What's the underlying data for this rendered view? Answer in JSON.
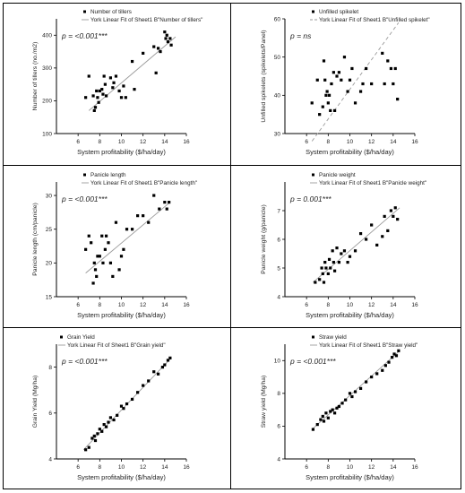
{
  "chart_data": [
    {
      "type": "scatter",
      "ylabel": "Number of tillers (no./m2)",
      "xlabel": "System profitability ($/ha/day)",
      "annotation": "p = <0.001***",
      "legend": [
        "Number of tillers",
        "York Linear Fit of Sheet1 B\"Number of tillers\""
      ],
      "legend_placement": "top-center",
      "xlim": [
        4,
        16
      ],
      "ylim": [
        100,
        450
      ],
      "xticks": [
        6,
        8,
        10,
        12,
        14,
        16
      ],
      "yticks": [
        100,
        200,
        300,
        400
      ],
      "series": [
        {
          "x": [
            6.7,
            7.0,
            7.4,
            7.5,
            7.6,
            7.7,
            7.8,
            7.9,
            8.0,
            8.2,
            8.3,
            8.4,
            8.5,
            8.6,
            9.0,
            9.2,
            9.3,
            9.5,
            9.8,
            10.0,
            10.2,
            10.4,
            11.0,
            11.2,
            12.0,
            13.0,
            13.2,
            13.4,
            13.6,
            14.0,
            14.1,
            14.2,
            14.3,
            14.5,
            14.6
          ],
          "y": [
            210,
            275,
            215,
            170,
            180,
            230,
            210,
            195,
            230,
            235,
            220,
            275,
            250,
            215,
            270,
            240,
            255,
            275,
            230,
            210,
            245,
            210,
            320,
            235,
            345,
            365,
            285,
            360,
            350,
            410,
            390,
            400,
            380,
            390,
            370
          ]
        }
      ],
      "fit": {
        "x": [
          7.0,
          15.0
        ],
        "y": [
          170,
          395
        ],
        "style": "solid"
      }
    },
    {
      "type": "scatter",
      "ylabel": "Unfilled spikelets (spikelets/Panel)",
      "xlabel": "System profitability ($/ha/day)",
      "annotation": "p = ns",
      "legend": [
        "Unfilled spikelet",
        "York Linear Fit of Sheet1 B\"Unfilled spikelet\""
      ],
      "legend_placement": "top-center",
      "xlim": [
        4,
        16
      ],
      "ylim": [
        30,
        60
      ],
      "xticks": [
        6,
        8,
        10,
        12,
        14,
        16
      ],
      "yticks": [
        30,
        40,
        50,
        60
      ],
      "series": [
        {
          "x": [
            6.5,
            7.0,
            7.2,
            7.5,
            7.6,
            7.7,
            7.8,
            7.9,
            8.0,
            8.1,
            8.2,
            8.3,
            8.5,
            8.6,
            8.8,
            9.0,
            9.2,
            9.5,
            9.8,
            10.0,
            10.2,
            10.5,
            11.0,
            11.2,
            11.5,
            12.0,
            13.0,
            13.2,
            13.5,
            13.8,
            14.0,
            14.2,
            14.4
          ],
          "y": [
            38,
            44,
            35,
            37,
            49,
            44,
            40,
            41,
            38,
            40,
            36,
            43,
            46,
            36,
            45,
            46,
            44,
            50,
            41,
            44,
            47,
            38,
            41,
            43,
            47,
            43,
            51,
            43,
            49,
            47,
            43,
            47,
            39
          ]
        }
      ],
      "fit": {
        "x": [
          6.5,
          14.5
        ],
        "y": [
          28,
          59
        ],
        "style": "dashed"
      }
    },
    {
      "type": "scatter",
      "ylabel": "Panicle length (cm/panicle)",
      "xlabel": "System profitability ($/ha/day)",
      "annotation": "p = <0.001***",
      "legend": [
        "Panicle length",
        "York Linear Fit of Sheet1 B\"Panicle length\""
      ],
      "legend_placement": "top-center",
      "xlim": [
        4,
        16
      ],
      "ylim": [
        15,
        32
      ],
      "xticks": [
        6,
        8,
        10,
        12,
        14,
        16
      ],
      "yticks": [
        15,
        20,
        25,
        30
      ],
      "series": [
        {
          "x": [
            6.7,
            7.0,
            7.2,
            7.4,
            7.5,
            7.6,
            7.7,
            7.8,
            8.0,
            8.2,
            8.3,
            8.5,
            8.6,
            8.8,
            9.0,
            9.2,
            9.5,
            9.8,
            10.0,
            10.2,
            10.5,
            11.0,
            11.5,
            12.0,
            12.5,
            13.0,
            13.5,
            14.0,
            14.2,
            14.4
          ],
          "y": [
            22,
            24,
            23,
            17,
            20,
            19,
            18,
            21,
            21,
            24,
            20,
            22,
            24,
            23,
            20,
            18,
            26,
            19,
            21,
            22,
            25,
            25,
            27,
            27,
            26,
            30,
            28,
            29,
            28,
            29
          ]
        }
      ],
      "fit": {
        "x": [
          6.7,
          14.5
        ],
        "y": [
          18.5,
          29.0
        ],
        "style": "solid"
      }
    },
    {
      "type": "scatter",
      "ylabel": "Panicle weight (g/panicle)",
      "xlabel": "System profitability ($/ha/day)",
      "annotation": "p = 0.001***",
      "legend": [
        "Panicle weight",
        "York Linear Fit of Sheet1 B\"Panicle weight\""
      ],
      "legend_placement": "top-center",
      "xlim": [
        4,
        16
      ],
      "ylim": [
        4,
        8
      ],
      "xticks": [
        6,
        8,
        10,
        12,
        14,
        16
      ],
      "yticks": [
        4,
        5,
        6,
        7
      ],
      "series": [
        {
          "x": [
            6.8,
            7.2,
            7.4,
            7.5,
            7.6,
            7.7,
            7.8,
            8.0,
            8.1,
            8.2,
            8.4,
            8.5,
            8.6,
            8.8,
            9.0,
            9.2,
            9.5,
            9.8,
            10.0,
            10.5,
            11.0,
            11.5,
            12.0,
            12.5,
            13.0,
            13.2,
            13.5,
            13.8,
            14.0,
            14.2,
            14.4
          ],
          "y": [
            4.5,
            4.6,
            5.0,
            4.8,
            4.5,
            5.2,
            5.0,
            4.8,
            5.3,
            5.0,
            5.6,
            5.2,
            4.9,
            5.7,
            5.2,
            5.5,
            5.6,
            5.2,
            5.4,
            5.6,
            6.2,
            6.0,
            6.5,
            5.8,
            6.1,
            6.8,
            6.3,
            7.0,
            6.8,
            7.1,
            6.7
          ]
        }
      ],
      "fit": {
        "x": [
          6.6,
          14.6
        ],
        "y": [
          4.5,
          7.1
        ],
        "style": "solid"
      }
    },
    {
      "type": "scatter",
      "ylabel": "Grain Yield (Mg/ha)",
      "xlabel": "System profitability ($/ha/day)",
      "annotation": "p = <0.001***",
      "legend": [
        "Grain Yield",
        "York Linear Fit of Sheet1 B\"Grain yield\""
      ],
      "legend_placement": "top-left",
      "xlim": [
        4,
        16
      ],
      "ylim": [
        4,
        9
      ],
      "xticks": [
        6,
        8,
        10,
        12,
        14,
        16
      ],
      "yticks": [
        4,
        6,
        8
      ],
      "series": [
        {
          "x": [
            6.7,
            7.0,
            7.3,
            7.5,
            7.6,
            7.8,
            8.0,
            8.2,
            8.4,
            8.6,
            8.8,
            9.0,
            9.3,
            9.6,
            10.0,
            10.2,
            10.5,
            11.0,
            11.5,
            12.0,
            12.5,
            13.0,
            13.4,
            13.8,
            14.0,
            14.3,
            14.5
          ],
          "y": [
            4.4,
            4.5,
            4.9,
            5.0,
            4.8,
            5.1,
            5.3,
            5.2,
            5.5,
            5.4,
            5.6,
            5.8,
            5.7,
            5.9,
            6.3,
            6.2,
            6.4,
            6.6,
            6.9,
            7.2,
            7.4,
            7.8,
            7.7,
            8.0,
            8.1,
            8.3,
            8.4
          ]
        }
      ],
      "fit": {
        "x": [
          6.5,
          14.6
        ],
        "y": [
          4.4,
          8.4
        ],
        "style": "solid"
      }
    },
    {
      "type": "scatter",
      "ylabel": "Straw yield (Mg/ha)",
      "xlabel": "System profitability ($/ha/day)",
      "annotation": "p = <0.001***",
      "legend": [
        "Straw yield",
        "York Linear Fit of Sheet1 B\"Straw yield\""
      ],
      "legend_placement": "top-center",
      "xlim": [
        4,
        16
      ],
      "ylim": [
        4,
        11
      ],
      "xticks": [
        6,
        8,
        10,
        12,
        14,
        16
      ],
      "yticks": [
        4,
        6,
        8,
        10
      ],
      "series": [
        {
          "x": [
            6.6,
            7.0,
            7.3,
            7.5,
            7.6,
            7.8,
            8.0,
            8.2,
            8.4,
            8.6,
            8.8,
            9.0,
            9.3,
            9.6,
            10.0,
            10.2,
            10.5,
            11.0,
            11.5,
            12.0,
            12.5,
            13.0,
            13.3,
            13.6,
            13.9,
            14.1,
            14.3,
            14.5
          ],
          "y": [
            5.8,
            6.1,
            6.4,
            6.6,
            6.3,
            6.8,
            6.5,
            6.9,
            7.0,
            6.8,
            7.1,
            7.2,
            7.4,
            7.6,
            8.0,
            7.8,
            8.1,
            8.3,
            8.7,
            9.0,
            9.2,
            9.4,
            9.7,
            9.9,
            10.2,
            10.4,
            10.3,
            10.6
          ]
        }
      ],
      "fit": {
        "x": [
          6.5,
          14.6
        ],
        "y": [
          5.8,
          10.6
        ],
        "style": "solid"
      }
    }
  ]
}
